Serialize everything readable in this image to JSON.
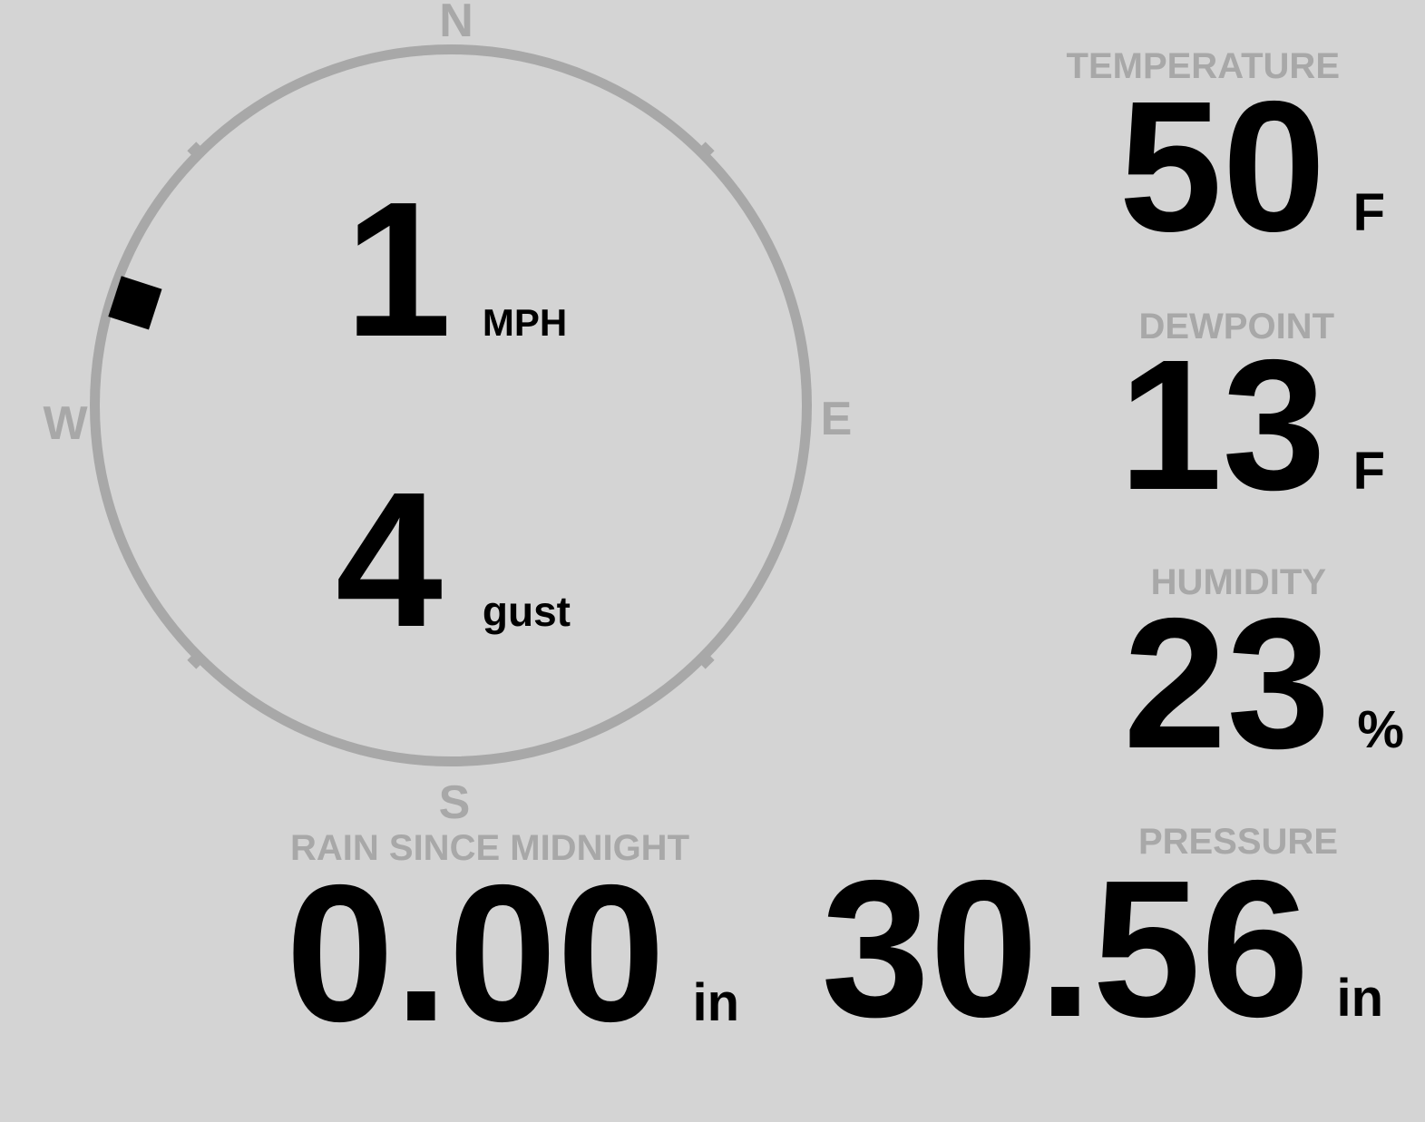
{
  "colors": {
    "background": "#d4d4d4",
    "muted_gray": "#a8a8a8",
    "ink": "#000000"
  },
  "wind": {
    "speed_value": "1",
    "speed_unit": "MPH",
    "gust_value": "4",
    "gust_unit": "gust",
    "direction_deg": 288,
    "compass_labels": {
      "north": "N",
      "east": "E",
      "south": "S",
      "west": "W"
    }
  },
  "metrics": {
    "temperature": {
      "label": "TEMPERATURE",
      "value": "50",
      "unit": "F"
    },
    "dewpoint": {
      "label": "DEWPOINT",
      "value": "13",
      "unit": "F"
    },
    "humidity": {
      "label": "HUMIDITY",
      "value": "23",
      "unit": "%"
    },
    "pressure": {
      "label": "PRESSURE",
      "value": "30.56",
      "unit": "in"
    },
    "rain_since_midnight": {
      "label": "RAIN SINCE MIDNIGHT",
      "value": "0.00",
      "unit": "in"
    }
  }
}
